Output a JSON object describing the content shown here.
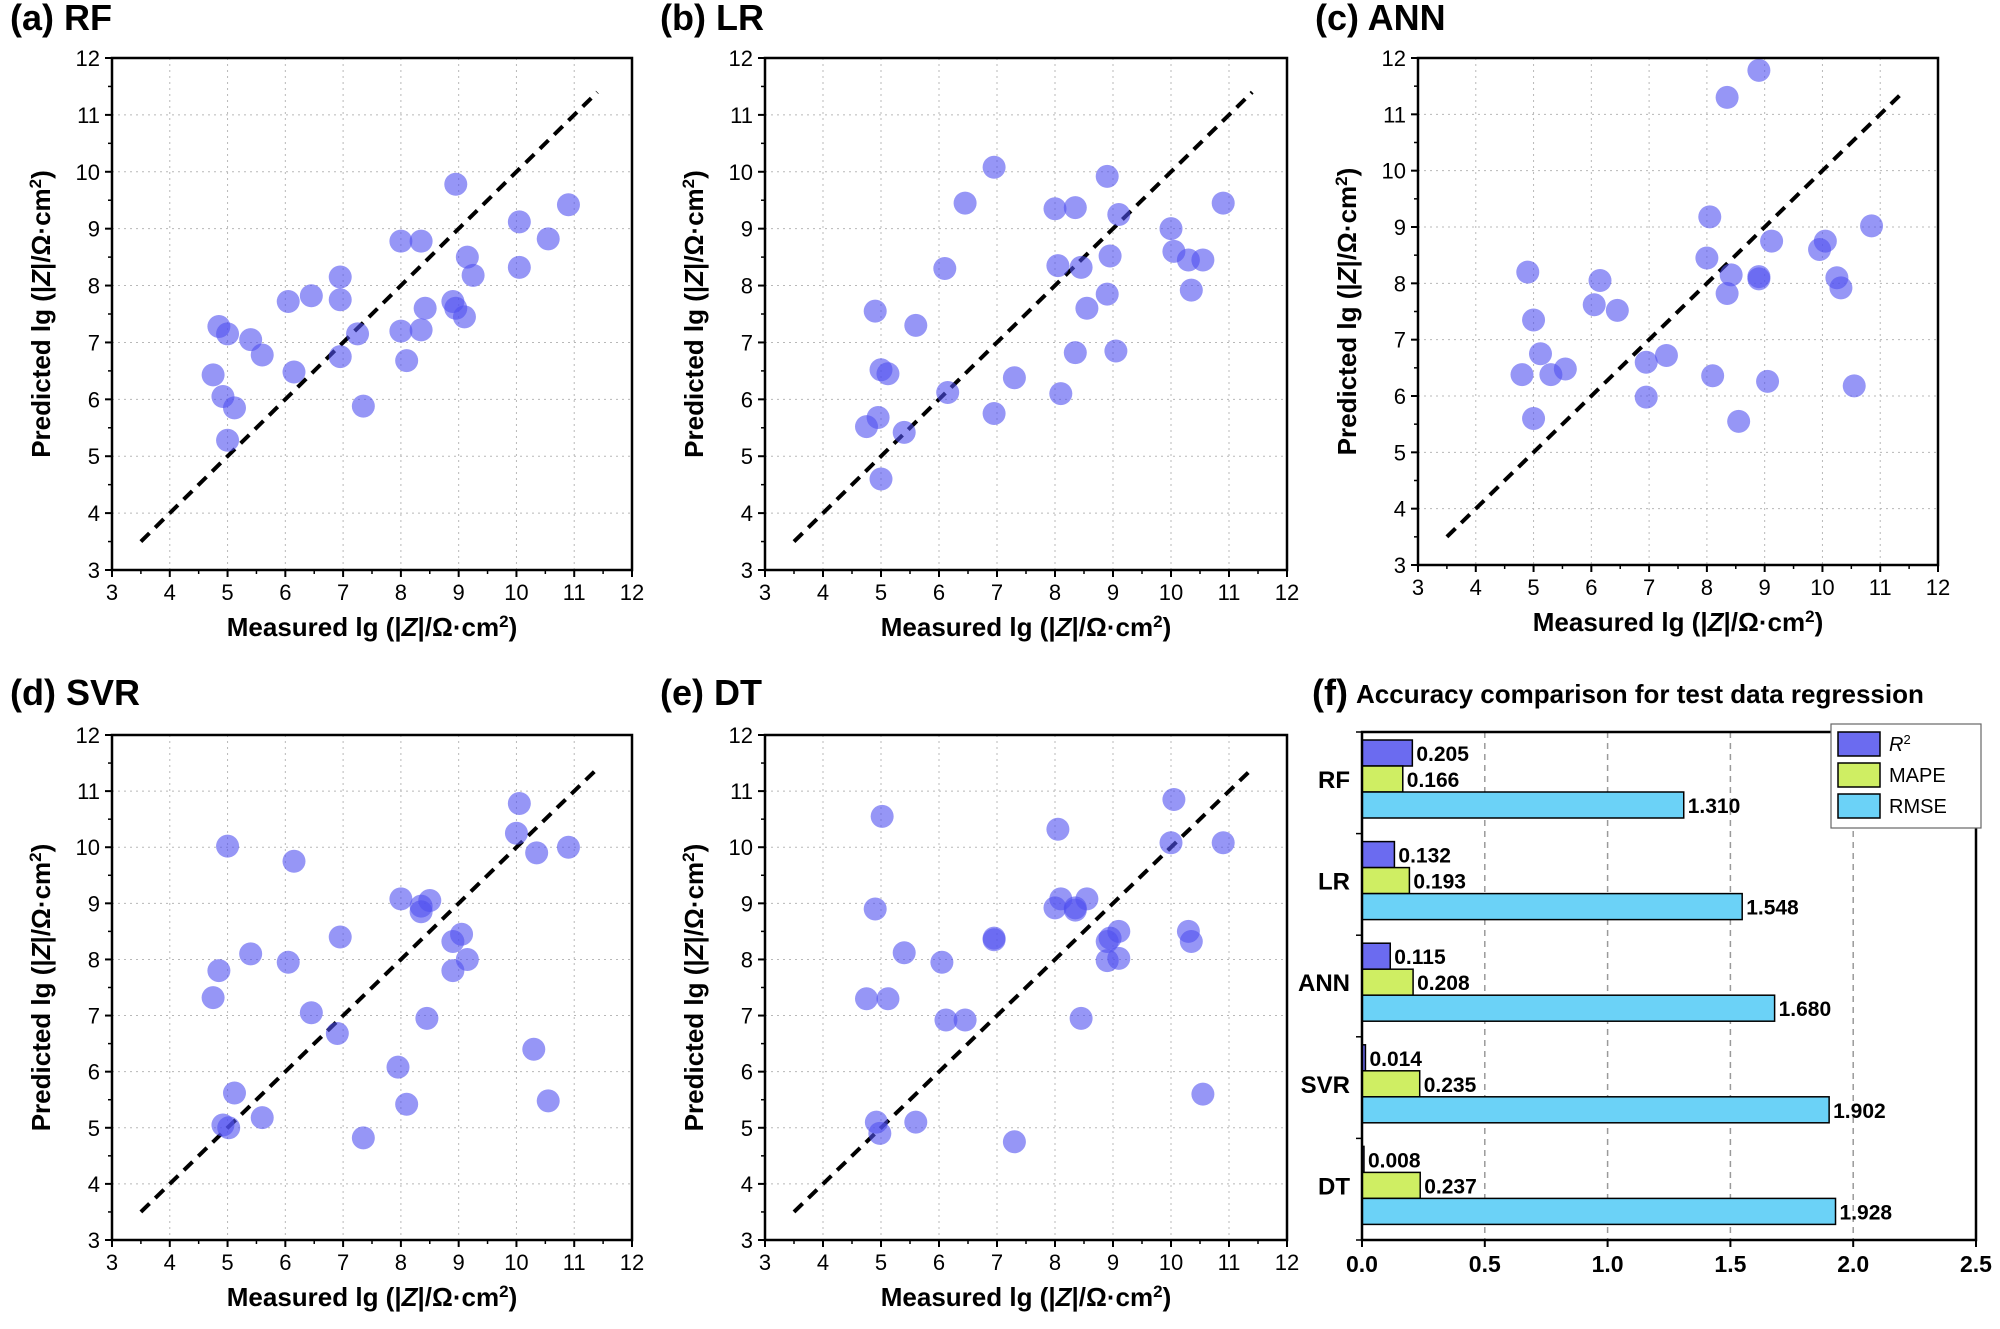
{
  "chart_data": [
    {
      "panel": "(a) RF",
      "type": "scatter",
      "xlabel": "Measured lg (|Z|/Ω·cm²)",
      "ylabel": "Predicted lg (|Z|/Ω·cm²)",
      "xlim": [
        3,
        12
      ],
      "ylim": [
        3,
        12
      ],
      "xticks": [
        "3",
        "4",
        "5",
        "6",
        "7",
        "8",
        "9",
        "10",
        "11",
        "12"
      ],
      "yticks": [
        "3",
        "4",
        "5",
        "6",
        "7",
        "8",
        "9",
        "10",
        "11",
        "12"
      ],
      "reference_line": [
        [
          3.5,
          3.5
        ],
        [
          11.4,
          11.4
        ]
      ],
      "points": [
        [
          4.75,
          6.43
        ],
        [
          4.85,
          7.28
        ],
        [
          4.92,
          6.05
        ],
        [
          5.0,
          7.15
        ],
        [
          5.0,
          5.28
        ],
        [
          5.12,
          5.85
        ],
        [
          5.4,
          7.05
        ],
        [
          5.6,
          6.78
        ],
        [
          6.05,
          7.72
        ],
        [
          6.15,
          6.48
        ],
        [
          6.45,
          7.82
        ],
        [
          6.95,
          8.15
        ],
        [
          6.95,
          7.75
        ],
        [
          6.95,
          6.75
        ],
        [
          7.25,
          7.15
        ],
        [
          7.35,
          5.88
        ],
        [
          8.0,
          8.78
        ],
        [
          8.0,
          7.2
        ],
        [
          8.1,
          6.68
        ],
        [
          8.35,
          8.78
        ],
        [
          8.35,
          7.22
        ],
        [
          8.42,
          7.6
        ],
        [
          8.9,
          7.72
        ],
        [
          8.95,
          9.78
        ],
        [
          8.95,
          7.6
        ],
        [
          9.1,
          7.45
        ],
        [
          9.15,
          8.5
        ],
        [
          9.25,
          8.18
        ],
        [
          10.05,
          9.12
        ],
        [
          10.05,
          8.32
        ],
        [
          10.55,
          8.82
        ],
        [
          10.9,
          9.42
        ]
      ]
    },
    {
      "panel": "(b) LR",
      "type": "scatter",
      "xlabel": "Measured lg (|Z|/Ω·cm²)",
      "ylabel": "Predicted lg (|Z|/Ω·cm²)",
      "xlim": [
        3,
        12
      ],
      "ylim": [
        3,
        12
      ],
      "xticks": [
        "3",
        "4",
        "5",
        "6",
        "7",
        "8",
        "9",
        "10",
        "11",
        "12"
      ],
      "yticks": [
        "3",
        "4",
        "5",
        "6",
        "7",
        "8",
        "9",
        "10",
        "11",
        "12"
      ],
      "reference_line": [
        [
          3.5,
          3.5
        ],
        [
          11.4,
          11.4
        ]
      ],
      "points": [
        [
          4.75,
          5.52
        ],
        [
          4.9,
          7.55
        ],
        [
          4.95,
          5.68
        ],
        [
          5.0,
          6.52
        ],
        [
          5.0,
          4.6
        ],
        [
          5.12,
          6.45
        ],
        [
          5.4,
          5.42
        ],
        [
          5.6,
          7.3
        ],
        [
          6.1,
          8.3
        ],
        [
          6.15,
          6.12
        ],
        [
          6.45,
          9.45
        ],
        [
          6.95,
          10.08
        ],
        [
          6.95,
          5.75
        ],
        [
          7.3,
          6.38
        ],
        [
          8.0,
          9.35
        ],
        [
          8.05,
          8.35
        ],
        [
          8.1,
          6.1
        ],
        [
          8.35,
          9.37
        ],
        [
          8.35,
          6.82
        ],
        [
          8.45,
          8.32
        ],
        [
          8.55,
          7.6
        ],
        [
          8.9,
          9.92
        ],
        [
          8.9,
          7.85
        ],
        [
          8.95,
          8.52
        ],
        [
          9.05,
          6.85
        ],
        [
          9.1,
          9.25
        ],
        [
          10.0,
          9.0
        ],
        [
          10.05,
          8.6
        ],
        [
          10.3,
          8.45
        ],
        [
          10.35,
          7.92
        ],
        [
          10.55,
          8.45
        ],
        [
          10.9,
          9.45
        ]
      ]
    },
    {
      "panel": "(c) ANN",
      "type": "scatter",
      "xlabel": "Measured lg (|Z|/Ω·cm²)",
      "ylabel": "Predicted lg (|Z|/Ω·cm²)",
      "xlim": [
        3,
        12
      ],
      "ylim": [
        3,
        12
      ],
      "xticks": [
        "3",
        "4",
        "5",
        "6",
        "7",
        "8",
        "9",
        "10",
        "11",
        "12"
      ],
      "yticks": [
        "3",
        "4",
        "5",
        "6",
        "7",
        "8",
        "9",
        "10",
        "11",
        "12"
      ],
      "reference_line": [
        [
          3.5,
          3.5
        ],
        [
          11.4,
          11.4
        ]
      ],
      "points": [
        [
          4.8,
          6.38
        ],
        [
          4.9,
          8.2
        ],
        [
          5.0,
          7.35
        ],
        [
          5.0,
          5.6
        ],
        [
          5.12,
          6.75
        ],
        [
          5.3,
          6.38
        ],
        [
          5.55,
          6.48
        ],
        [
          6.05,
          7.62
        ],
        [
          6.15,
          8.05
        ],
        [
          6.45,
          7.52
        ],
        [
          6.95,
          6.6
        ],
        [
          6.95,
          5.98
        ],
        [
          7.3,
          6.72
        ],
        [
          8.0,
          8.45
        ],
        [
          8.05,
          9.18
        ],
        [
          8.1,
          6.36
        ],
        [
          8.35,
          11.3
        ],
        [
          8.35,
          7.82
        ],
        [
          8.42,
          8.15
        ],
        [
          8.55,
          5.55
        ],
        [
          8.9,
          11.78
        ],
        [
          8.9,
          8.12
        ],
        [
          8.9,
          8.08
        ],
        [
          9.05,
          6.26
        ],
        [
          9.12,
          8.75
        ],
        [
          9.95,
          8.6
        ],
        [
          10.05,
          8.75
        ],
        [
          10.25,
          8.1
        ],
        [
          10.32,
          7.92
        ],
        [
          10.55,
          6.18
        ],
        [
          10.85,
          9.02
        ]
      ]
    },
    {
      "panel": "(d) SVR",
      "type": "scatter",
      "xlabel": "Measured lg (|Z|/Ω·cm²)",
      "ylabel": "Predicted lg (|Z|/Ω·cm²)",
      "xlim": [
        3,
        12
      ],
      "ylim": [
        3,
        12
      ],
      "xticks": [
        "3",
        "4",
        "5",
        "6",
        "7",
        "8",
        "9",
        "10",
        "11",
        "12"
      ],
      "yticks": [
        "3",
        "4",
        "5",
        "6",
        "7",
        "8",
        "9",
        "10",
        "11",
        "12"
      ],
      "reference_line": [
        [
          3.5,
          3.5
        ],
        [
          11.4,
          11.4
        ]
      ],
      "points": [
        [
          4.75,
          7.32
        ],
        [
          4.85,
          7.8
        ],
        [
          4.92,
          5.05
        ],
        [
          5.0,
          10.02
        ],
        [
          5.02,
          5.0
        ],
        [
          5.12,
          5.62
        ],
        [
          5.4,
          8.1
        ],
        [
          5.6,
          5.18
        ],
        [
          6.05,
          7.95
        ],
        [
          6.15,
          9.75
        ],
        [
          6.45,
          7.05
        ],
        [
          6.9,
          6.68
        ],
        [
          6.95,
          8.4
        ],
        [
          7.35,
          4.82
        ],
        [
          7.95,
          6.08
        ],
        [
          8.0,
          9.08
        ],
        [
          8.1,
          5.42
        ],
        [
          8.35,
          8.95
        ],
        [
          8.35,
          8.85
        ],
        [
          8.45,
          6.95
        ],
        [
          8.5,
          9.05
        ],
        [
          8.9,
          8.32
        ],
        [
          8.9,
          7.8
        ],
        [
          9.05,
          8.45
        ],
        [
          9.15,
          8.0
        ],
        [
          10.0,
          10.25
        ],
        [
          10.05,
          10.78
        ],
        [
          10.3,
          6.4
        ],
        [
          10.35,
          9.9
        ],
        [
          10.55,
          5.48
        ],
        [
          10.9,
          10.0
        ]
      ]
    },
    {
      "panel": "(e) DT",
      "type": "scatter",
      "xlabel": "Measured lg (|Z|/Ω·cm²)",
      "ylabel": "Predicted lg (|Z|/Ω·cm²)",
      "xlim": [
        3,
        12
      ],
      "ylim": [
        3,
        12
      ],
      "xticks": [
        "3",
        "4",
        "5",
        "6",
        "7",
        "8",
        "9",
        "10",
        "11",
        "12"
      ],
      "yticks": [
        "3",
        "4",
        "5",
        "6",
        "7",
        "8",
        "9",
        "10",
        "11",
        "12"
      ],
      "reference_line": [
        [
          3.5,
          3.5
        ],
        [
          11.4,
          11.4
        ]
      ],
      "points": [
        [
          4.75,
          7.3
        ],
        [
          4.9,
          8.9
        ],
        [
          4.92,
          5.1
        ],
        [
          4.98,
          4.9
        ],
        [
          5.02,
          10.55
        ],
        [
          5.12,
          7.3
        ],
        [
          5.4,
          8.12
        ],
        [
          5.6,
          5.1
        ],
        [
          6.05,
          7.95
        ],
        [
          6.12,
          6.92
        ],
        [
          6.45,
          6.92
        ],
        [
          6.95,
          8.38
        ],
        [
          6.95,
          8.35
        ],
        [
          7.3,
          4.75
        ],
        [
          8.0,
          8.92
        ],
        [
          8.05,
          10.32
        ],
        [
          8.1,
          9.08
        ],
        [
          8.35,
          8.92
        ],
        [
          8.35,
          8.88
        ],
        [
          8.45,
          6.95
        ],
        [
          8.55,
          9.08
        ],
        [
          8.9,
          8.32
        ],
        [
          8.9,
          7.98
        ],
        [
          8.95,
          8.38
        ],
        [
          9.1,
          8.5
        ],
        [
          9.1,
          8.02
        ],
        [
          10.0,
          10.08
        ],
        [
          10.05,
          10.85
        ],
        [
          10.3,
          8.5
        ],
        [
          10.35,
          8.32
        ],
        [
          10.55,
          5.6
        ],
        [
          10.9,
          10.08
        ]
      ]
    },
    {
      "panel": "(f)",
      "type": "bar",
      "orientation": "horizontal",
      "title": "Accuracy comparison for test data regression",
      "categories": [
        "RF",
        "LR",
        "ANN",
        "SVR",
        "DT"
      ],
      "xlim": [
        0,
        2.5
      ],
      "xticks": [
        "0.0",
        "0.5",
        "1.0",
        "1.5",
        "2.0",
        "2.5"
      ],
      "legend_position": "top-right",
      "series": [
        {
          "name": "R2",
          "legend_label": "R",
          "legend_sup": "2",
          "color": "#6b6bf0",
          "values": [
            0.205,
            0.132,
            0.115,
            0.014,
            0.008
          ],
          "labels": [
            "0.205",
            "0.132",
            "0.115",
            "0.014",
            "0.008"
          ]
        },
        {
          "name": "MAPE",
          "legend_label": "MAPE",
          "color": "#cfee63",
          "values": [
            0.166,
            0.193,
            0.208,
            0.235,
            0.237
          ],
          "labels": [
            "0.166",
            "0.193",
            "0.208",
            "0.235",
            "0.237"
          ]
        },
        {
          "name": "RMSE",
          "legend_label": "RMSE",
          "color": "#6bd2f7",
          "values": [
            1.31,
            1.548,
            1.68,
            1.902,
            1.928
          ],
          "labels": [
            "1.310",
            "1.548",
            "1.680",
            "1.902",
            "1.928"
          ]
        }
      ]
    }
  ],
  "style": {
    "point_color": "#5050f0",
    "point_opacity": 0.6,
    "line_color": "#000000",
    "grid_color": "#b8b8b8"
  }
}
